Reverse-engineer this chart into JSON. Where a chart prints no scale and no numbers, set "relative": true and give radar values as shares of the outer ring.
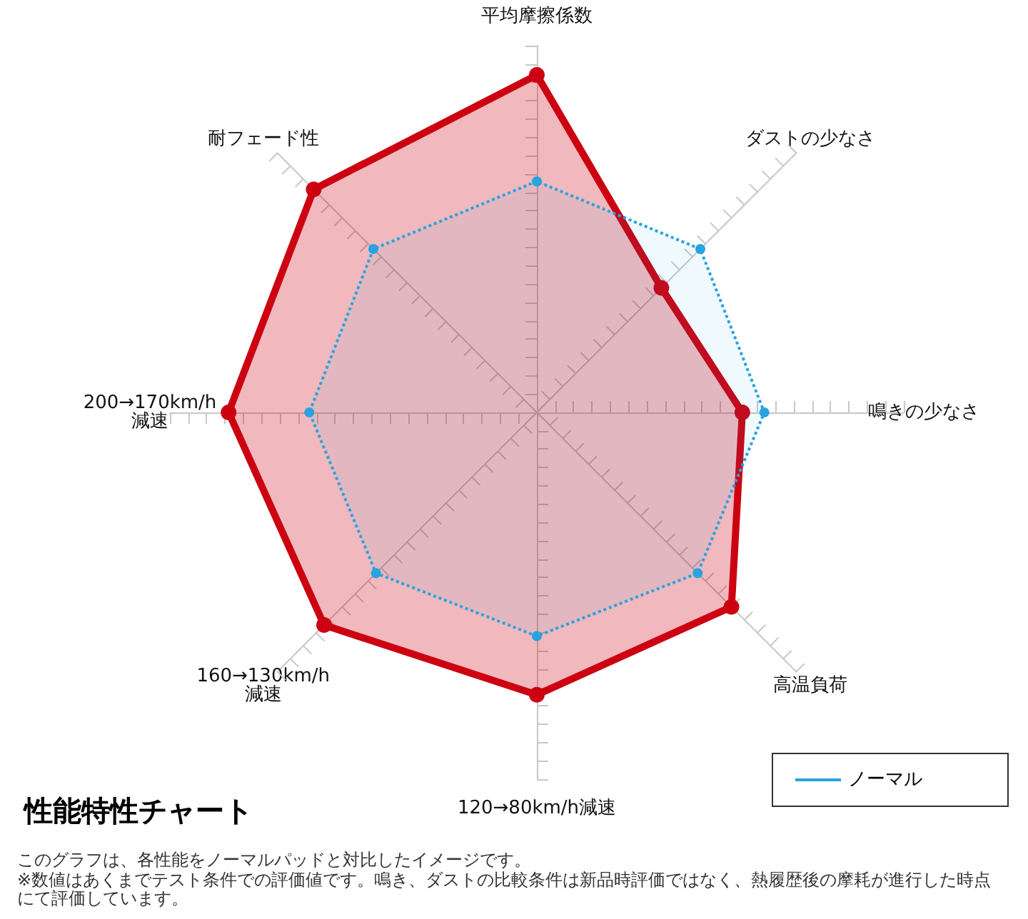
{
  "chart_data": {
    "type": "radar",
    "title": "性能特性チャート",
    "annotations": [
      "このグラフは、各性能をノーマルパッドと対比したイメージです。",
      "※数値はあくまでテスト条件での評価値です。鳴き、ダストの比較条件は新品時評価ではなく、熱履歴後の摩耗が進行した時点にて評価しています。"
    ],
    "categories": [
      "平均摩擦係数",
      "ダストの少なさ",
      "鳴きの少なさ",
      "高温負荷",
      "120→80km/h減速",
      "160→130km/h\n減速",
      "200→170km/h\n減速",
      "耐フェード性"
    ],
    "relative": true,
    "legend": "bottom right",
    "marker": "circle",
    "series": [
      {
        "color": "#cc0011",
        "line_style": "solid",
        "values": [
          0.92,
          0.48,
          0.56,
          0.75,
          0.77,
          0.82,
          0.84,
          0.86
        ]
      },
      {
        "name": "ノーマル",
        "color": "#29a3e0",
        "line_style": "dotted",
        "values": [
          0.63,
          0.63,
          0.62,
          0.62,
          0.61,
          0.62,
          0.62,
          0.63
        ]
      }
    ]
  }
}
